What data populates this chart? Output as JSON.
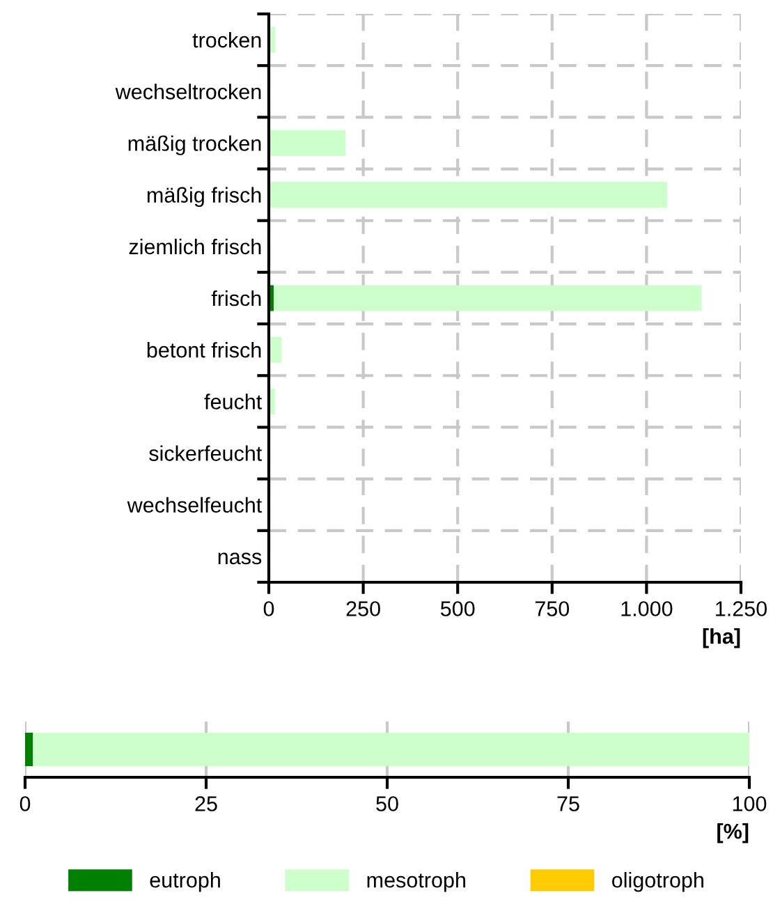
{
  "chart_data": [
    {
      "type": "bar",
      "orientation": "horizontal",
      "stacked": true,
      "categories": [
        "trocken",
        "wechseltrocken",
        "mäßig trocken",
        "mäßig frisch",
        "ziemlich frisch",
        "frisch",
        "betont frisch",
        "feucht",
        "sickerfeucht",
        "wechselfeucht",
        "nass"
      ],
      "series": [
        {
          "name": "eutroph",
          "color": "#008000",
          "values": [
            0,
            0,
            0,
            0,
            0,
            13,
            0,
            0,
            0,
            0,
            0
          ]
        },
        {
          "name": "mesotroph",
          "color": "#ccffcc",
          "values": [
            17,
            0,
            203,
            1055,
            0,
            1133,
            34,
            16,
            0,
            1,
            0
          ]
        },
        {
          "name": "oligotroph",
          "color": "#ffcc00",
          "values": [
            0,
            0,
            0,
            0,
            0,
            0,
            0,
            0,
            0,
            0,
            0
          ]
        }
      ],
      "xlim": [
        0,
        1250
      ],
      "xticks": [
        0,
        250,
        500,
        750,
        {
          "value": 1000,
          "label": "1.000"
        },
        {
          "value": 1250,
          "label": "1.250"
        }
      ],
      "xlabel": "[ha]",
      "grid": true,
      "legend": "bottom"
    },
    {
      "type": "bar",
      "orientation": "horizontal",
      "stacked": true,
      "categories": [
        null
      ],
      "series": [
        {
          "color": "#008000",
          "values": [
            1.1
          ]
        },
        {
          "color": "#ccffcc",
          "values": [
            98.9
          ]
        },
        {
          "color": "#ffcc00",
          "values": [
            0
          ]
        }
      ],
      "xlim": [
        0,
        100
      ],
      "xticks": [
        0,
        25,
        50,
        75,
        100
      ],
      "xlabel": "[%]",
      "grid": "x"
    }
  ]
}
